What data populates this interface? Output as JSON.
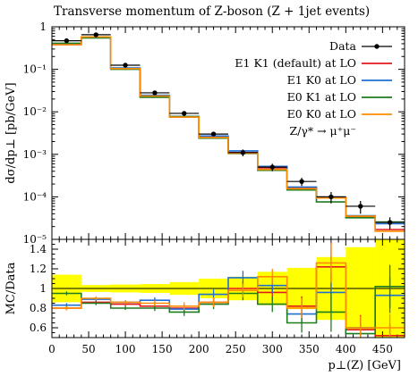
{
  "chart_data": [
    {
      "type": "line",
      "title": "Transverse momentum of Z-boson (Z + 1jet events)",
      "ylabel": "dσ/dp⊥ [pb/GeV]",
      "yscale": "log",
      "xlim": [
        0,
        480
      ],
      "ylim": [
        1e-05,
        1
      ],
      "ytick_labels": [
        "10⁻⁵",
        "10⁻⁴",
        "10⁻³",
        "10⁻²",
        "10⁻¹",
        "1"
      ],
      "legend_placement": "top-right",
      "legend_extra_label": "Z/γ* → μ⁺μ⁻",
      "bin_edges": [
        0,
        40,
        80,
        120,
        160,
        200,
        240,
        280,
        320,
        360,
        400,
        440,
        480
      ],
      "data": {
        "name": "Data",
        "x": [
          20,
          60,
          100,
          140,
          180,
          220,
          260,
          300,
          340,
          380,
          420,
          460
        ],
        "values": [
          0.47,
          0.65,
          0.125,
          0.028,
          0.0092,
          0.003,
          0.0011,
          0.0005,
          0.00023,
          0.0001,
          6e-05,
          2.5e-05
        ],
        "err_low": [
          0.44,
          0.61,
          0.118,
          0.026,
          0.0085,
          0.0027,
          0.0009,
          0.0004,
          0.00018,
          7e-05,
          4e-05,
          1.7e-05
        ],
        "err_high": [
          0.5,
          0.69,
          0.133,
          0.03,
          0.0099,
          0.0033,
          0.0013,
          0.0006,
          0.00028,
          0.00013,
          8e-05,
          3.3e-05
        ]
      },
      "series": [
        {
          "name": "E1 K1 (default) at LO",
          "color": "#e31a1c",
          "values": [
            0.38,
            0.56,
            0.105,
            0.023,
            0.0075,
            0.0025,
            0.0011,
            0.00048,
            0.00016,
            9.8e-05,
            3.45e-05,
            1.7e-05
          ]
        },
        {
          "name": "E1 K0 at LO",
          "color": "#1f6fd4",
          "values": [
            0.39,
            0.58,
            0.108,
            0.0245,
            0.0078,
            0.0027,
            0.00121,
            0.00052,
            0.00017,
            9.6e-05,
            3.58e-05,
            2.33e-05
          ]
        },
        {
          "name": "E0 K1 at LO",
          "color": "#1e7b1e",
          "values": [
            0.41,
            0.55,
            0.1,
            0.022,
            0.0077,
            0.0024,
            0.00105,
            0.00042,
            0.000145,
            7.6e-05,
            3.22e-05,
            2.55e-05
          ]
        },
        {
          "name": "E0 K0 at LO",
          "color": "#ff8c00",
          "values": [
            0.38,
            0.58,
            0.104,
            0.0235,
            0.0075,
            0.0025,
            0.00107,
            0.00044,
            0.000155,
            9.4e-05,
            3.5e-05,
            1.55e-05
          ]
        }
      ]
    },
    {
      "type": "line",
      "ylabel": "MC/Data",
      "xlabel": "p⊥(Z) [GeV]",
      "xlim": [
        0,
        480
      ],
      "ylim": [
        0.5,
        1.5
      ],
      "xticks": [
        0,
        50,
        100,
        150,
        200,
        250,
        300,
        350,
        400,
        450
      ],
      "yticks": [
        0.6,
        0.8,
        1,
        1.2,
        1.4
      ],
      "band_color": "#ffff00",
      "data_uncertainty_band": {
        "low": [
          0.86,
          0.965,
          0.96,
          0.955,
          0.935,
          0.9,
          0.88,
          0.83,
          0.79,
          0.68,
          0.58,
          0.5
        ],
        "high": [
          1.14,
          1.035,
          1.04,
          1.045,
          1.065,
          1.1,
          1.12,
          1.17,
          1.21,
          1.32,
          1.42,
          1.5
        ]
      },
      "series": [
        {
          "name": "E1 K1 (default) at LO",
          "color": "#e31a1c",
          "values": [
            0.8,
            0.86,
            0.84,
            0.82,
            0.8,
            0.86,
            1.0,
            0.96,
            0.82,
            1.22,
            0.58,
            0.52
          ],
          "err": [
            0.02,
            0.02,
            0.02,
            0.03,
            0.04,
            0.05,
            0.07,
            0.08,
            0.1,
            0.25,
            0.15,
            0.12
          ]
        },
        {
          "name": "E1 K0 at LO",
          "color": "#1f6fd4",
          "values": [
            0.83,
            0.89,
            0.86,
            0.88,
            0.79,
            0.94,
            1.11,
            1.03,
            0.74,
            0.96,
            0.6,
            0.93
          ],
          "err": [
            0.02,
            0.02,
            0.02,
            0.03,
            0.04,
            0.05,
            0.07,
            0.08,
            0.1,
            0.2,
            0.1,
            0.18
          ]
        },
        {
          "name": "E0 K1 at LO",
          "color": "#1e7b1e",
          "values": [
            0.95,
            0.85,
            0.8,
            0.8,
            0.76,
            0.84,
            0.95,
            0.84,
            0.65,
            0.76,
            0.54,
            1.02
          ],
          "err": [
            0.02,
            0.02,
            0.02,
            0.03,
            0.04,
            0.05,
            0.07,
            0.08,
            0.1,
            0.2,
            0.12,
            0.22
          ]
        },
        {
          "name": "E0 K0 at LO",
          "color": "#ff8c00",
          "values": [
            0.8,
            0.9,
            0.86,
            0.85,
            0.82,
            0.86,
            0.98,
            1.12,
            0.8,
            1.26,
            0.6,
            0.6
          ],
          "err": [
            0.02,
            0.02,
            0.02,
            0.03,
            0.04,
            0.05,
            0.07,
            0.08,
            0.1,
            0.2,
            0.12,
            0.14
          ]
        }
      ]
    }
  ]
}
